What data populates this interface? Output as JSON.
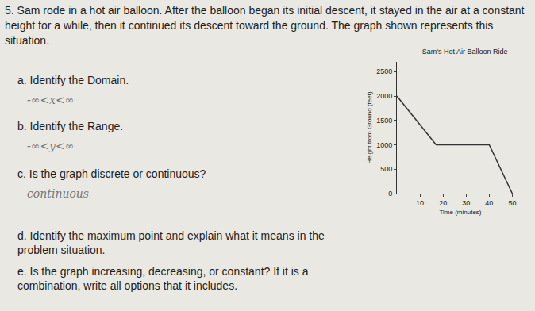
{
  "document": {
    "intro": "5. Sam rode in a hot air balloon. After the balloon began its initial descent, it stayed in the air at a constant height for a while, then it continued its descent toward the ground. The graph shown represents this situation.",
    "parts": [
      {
        "prompt": "a. Identify the Domain.",
        "answer": "-∞<x<∞"
      },
      {
        "prompt": "b. Identify the Range.",
        "answer": "-∞<y<∞"
      },
      {
        "prompt": "c. Is the graph discrete or continuous?",
        "answer": "continuous"
      },
      {
        "prompt": "d. Identify the maximum point and explain what it means in the problem situation."
      },
      {
        "prompt": "e. Is the graph increasing, decreasing, or constant? If it is a combination, write all options that it includes."
      }
    ]
  },
  "chart_data": {
    "type": "line",
    "title": "Sam's Hot Air Balloon Ride",
    "x_label": "Time (minutes)",
    "y_label": "Height from Ground (feet)",
    "x": [
      0,
      17,
      40,
      50
    ],
    "values": [
      2000,
      1000,
      1000,
      0
    ],
    "color": "#333333",
    "xlim": [
      0,
      55
    ],
    "xticks": [
      10,
      20,
      30,
      40,
      50
    ],
    "ylim": [
      0,
      2700
    ],
    "yticks": [
      0,
      500,
      1000,
      1500,
      2000,
      2500
    ],
    "grid": false
  }
}
